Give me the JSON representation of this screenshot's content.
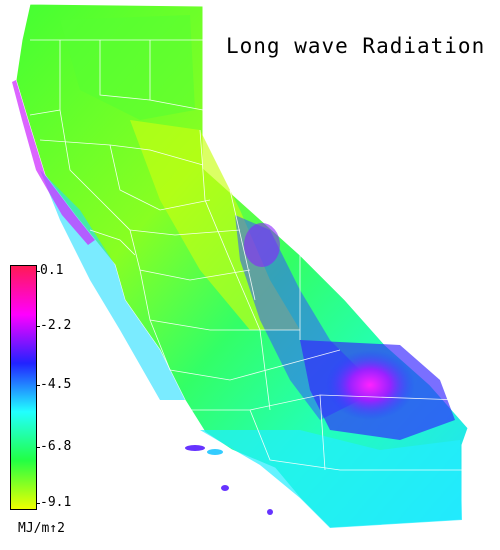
{
  "map": {
    "title": "Long wave Radiation",
    "legend": {
      "ticks": [
        "0.1",
        "-2.2",
        "-4.5",
        "-6.8",
        "-9.1"
      ],
      "unit": "MJ/m↑2",
      "colors": {
        "top": "#ff1a55",
        "magenta": "#ff00ff",
        "blue": "#2222ff",
        "cyan": "#22ffff",
        "green": "#22ff44",
        "bottom": "#eeff00"
      }
    }
  }
}
